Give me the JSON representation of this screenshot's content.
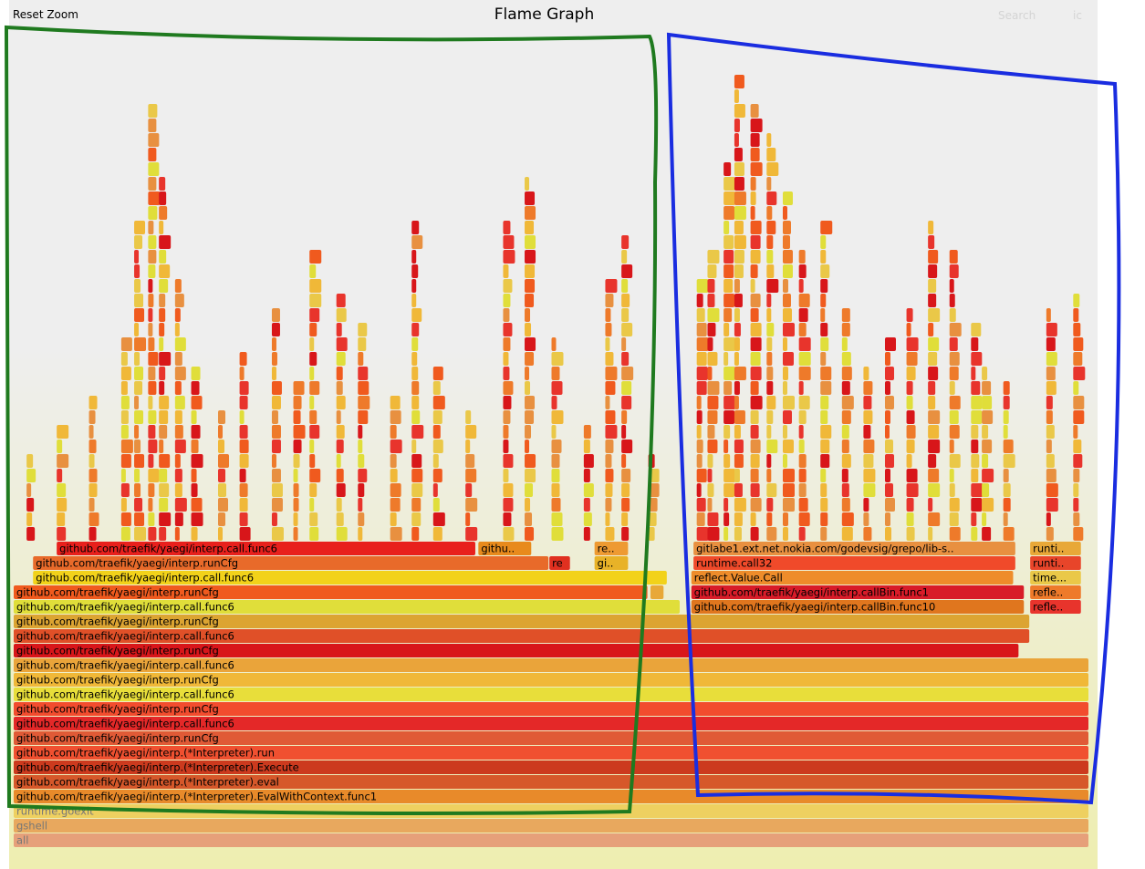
{
  "header": {
    "reset_zoom": "Reset Zoom",
    "title": "Flame Graph",
    "search": "Search",
    "ic": "ic"
  },
  "chart_data": {
    "type": "flame",
    "title": "Flame Graph",
    "frames": [
      {
        "label": "all",
        "start": 0.0,
        "width": 1.0,
        "depth": 0,
        "color": "#e6a07a",
        "faint": true
      },
      {
        "label": "gshell",
        "start": 0.0,
        "width": 1.0,
        "depth": 1,
        "color": "#e8a85e",
        "faint": true
      },
      {
        "label": "runtime.goexit",
        "start": 0.0,
        "width": 1.0,
        "depth": 2,
        "color": "#eed060",
        "faint": true
      },
      {
        "label": "github.com/traefik/yaegi/interp.(*Interpreter).EvalWithContext.func1",
        "start": 0.0,
        "width": 1.0,
        "depth": 3,
        "color": "#e88a2a"
      },
      {
        "label": "github.com/traefik/yaegi/interp.(*Interpreter).eval",
        "start": 0.0,
        "width": 1.0,
        "depth": 4,
        "color": "#d6582a"
      },
      {
        "label": "github.com/traefik/yaegi/interp.(*Interpreter).Execute",
        "start": 0.0,
        "width": 1.0,
        "depth": 5,
        "color": "#cc3a1e"
      },
      {
        "label": "github.com/traefik/yaegi/interp.(*Interpreter).run",
        "start": 0.0,
        "width": 1.0,
        "depth": 6,
        "color": "#f05030"
      },
      {
        "label": "github.com/traefik/yaegi/interp.runCfg",
        "start": 0.0,
        "width": 1.0,
        "depth": 7,
        "color": "#e05a36"
      },
      {
        "label": "github.com/traefik/yaegi/interp.call.func6",
        "start": 0.0,
        "width": 1.0,
        "depth": 8,
        "color": "#e42828"
      },
      {
        "label": "github.com/traefik/yaegi/interp.runCfg",
        "start": 0.0,
        "width": 1.0,
        "depth": 9,
        "color": "#f24c2e"
      },
      {
        "label": "github.com/traefik/yaegi/interp.call.func6",
        "start": 0.0,
        "width": 1.0,
        "depth": 10,
        "color": "#e8de3a"
      },
      {
        "label": "github.com/traefik/yaegi/interp.runCfg",
        "start": 0.0,
        "width": 1.0,
        "depth": 11,
        "color": "#f0b838"
      },
      {
        "label": "github.com/traefik/yaegi/interp.call.func6",
        "start": 0.0,
        "width": 1.0,
        "depth": 12,
        "color": "#eaa43a"
      },
      {
        "label": "github.com/traefik/yaegi/interp.runCfg",
        "start": 0.0,
        "width": 0.935,
        "depth": 13,
        "color": "#d8161a"
      },
      {
        "label": "github.com/traefik/yaegi/interp.call.func6",
        "start": 0.0,
        "width": 0.945,
        "depth": 14,
        "color": "#e05028"
      },
      {
        "label": "github.com/traefik/yaegi/interp.runCfg",
        "start": 0.0,
        "width": 0.945,
        "depth": 15,
        "color": "#dca432"
      },
      {
        "label": "github.com/traefik/yaegi/interp.call.func6",
        "start": 0.0,
        "width": 0.62,
        "depth": 16,
        "color": "#e0de3a"
      },
      {
        "label": "github.com/traefik/yaegi/interp.callBin.func10",
        "start": 0.63,
        "width": 0.31,
        "depth": 16,
        "color": "#e0761e"
      },
      {
        "label": "reflect.Value.call",
        "start": 0.945,
        "width": 0.048,
        "depth": 16,
        "color": "#e8342c"
      },
      {
        "label": "github.com/traefik/yaegi/interp.runCfg",
        "start": 0.0,
        "width": 0.59,
        "depth": 17,
        "color": "#f05a1e"
      },
      {
        "label": "re",
        "start": 0.592,
        "width": 0.013,
        "depth": 17,
        "color": "#e8a838"
      },
      {
        "label": "github.com/traefik/yaegi/interp.callBin.func1",
        "start": 0.63,
        "width": 0.31,
        "depth": 17,
        "color": "#d81c28"
      },
      {
        "label": "reflect.Value.call",
        "start": 0.945,
        "width": 0.048,
        "depth": 17,
        "color": "#ee7a2a"
      },
      {
        "label": "github.com/traefik/yaegi/interp.call.func6",
        "start": 0.018,
        "width": 0.59,
        "depth": 18,
        "color": "#f2d21a"
      },
      {
        "label": "reflect.Value.Call",
        "start": 0.63,
        "width": 0.3,
        "depth": 18,
        "color": "#ee8c2a"
      },
      {
        "label": "time.S..",
        "start": 0.945,
        "width": 0.048,
        "depth": 18,
        "color": "#eac848"
      },
      {
        "label": "github.com/traefik/yaegi/interp.runCfg",
        "start": 0.018,
        "width": 0.48,
        "depth": 19,
        "color": "#e86a2a"
      },
      {
        "label": "re",
        "start": 0.498,
        "width": 0.02,
        "depth": 19,
        "color": "#e03020"
      },
      {
        "label": "gith..",
        "start": 0.54,
        "width": 0.032,
        "depth": 19,
        "color": "#e8b228"
      },
      {
        "label": "runtime.call32",
        "start": 0.632,
        "width": 0.3,
        "depth": 19,
        "color": "#f04a2a"
      },
      {
        "label": "runtim..",
        "start": 0.945,
        "width": 0.048,
        "depth": 19,
        "color": "#e8452a"
      },
      {
        "label": "github.com/traefik/yaegi/interp.call.func6",
        "start": 0.04,
        "width": 0.39,
        "depth": 20,
        "color": "#e8201c"
      },
      {
        "label": "github.c..",
        "start": 0.432,
        "width": 0.05,
        "depth": 20,
        "color": "#e88a1c"
      },
      {
        "label": "refle..",
        "start": 0.54,
        "width": 0.032,
        "depth": 20,
        "color": "#ee9a32"
      },
      {
        "label": "gitlabe1.ext.net.nokia.com/godevsig/grepo/lib-sys/pidin..",
        "start": 0.632,
        "width": 0.3,
        "depth": 20,
        "color": "#e89040"
      },
      {
        "label": "runtim..",
        "start": 0.945,
        "width": 0.048,
        "depth": 20,
        "color": "#e8a838"
      }
    ]
  }
}
